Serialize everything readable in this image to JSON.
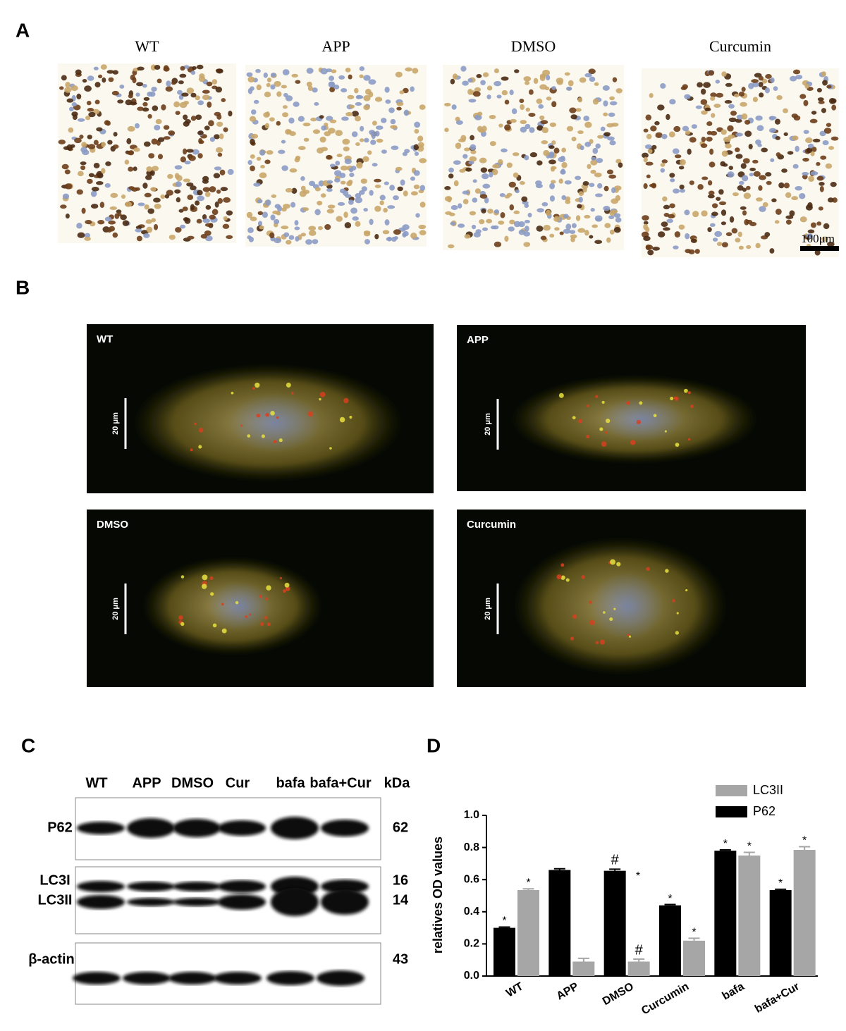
{
  "panel_a": {
    "label": "A",
    "titles": [
      "WT",
      "APP",
      "DMSO",
      "Curcumin"
    ],
    "scale_bar": "100μm"
  },
  "panel_b": {
    "label": "B",
    "titles": [
      "WT",
      "APP",
      "DMSO",
      "Curcumin"
    ],
    "scale_bar": "20 μm"
  },
  "panel_c": {
    "label": "C",
    "lanes": [
      "WT",
      "APP",
      "DMSO",
      "Cur",
      "bafa",
      "bafa+Cur"
    ],
    "unit": "kDa",
    "rows": [
      {
        "name": "P62",
        "kda": 62
      },
      {
        "name": "LC3I",
        "kda": 16
      },
      {
        "name": "LC3II",
        "kda": 14
      },
      {
        "name": "β-actin",
        "kda": 43
      }
    ]
  },
  "chart_data": {
    "type": "bar",
    "panel_label": "D",
    "y_label": "relatives OD values",
    "categories": [
      "WT",
      "APP",
      "DMSO",
      "Curcumin",
      "bafa",
      "bafa+Cur"
    ],
    "series": [
      {
        "name": "LC3II",
        "color": "#a6a6a6",
        "values": [
          0.535,
          0.09,
          0.09,
          0.22,
          0.75,
          0.785
        ],
        "errors": [
          0.008,
          0.02,
          0.015,
          0.015,
          0.02,
          0.02
        ],
        "markers": [
          "*",
          null,
          "#",
          "*",
          "*",
          "*"
        ]
      },
      {
        "name": "P62",
        "color": "#000000",
        "values": [
          0.3,
          0.66,
          0.655,
          0.44,
          0.78,
          0.535
        ],
        "errors": [
          0.005,
          0.008,
          0.01,
          0.005,
          0.005,
          0.005
        ],
        "markers": [
          "*",
          null,
          "#",
          "*",
          "*",
          "*"
        ]
      }
    ],
    "annotations": [
      "*"
    ],
    "ylim": [
      0,
      1
    ],
    "yticks": [
      {
        "value": 0,
        "label": "0.0"
      },
      0.2,
      0.4,
      0.6,
      0.8,
      {
        "value": 1,
        "label": "1.0"
      }
    ]
  }
}
